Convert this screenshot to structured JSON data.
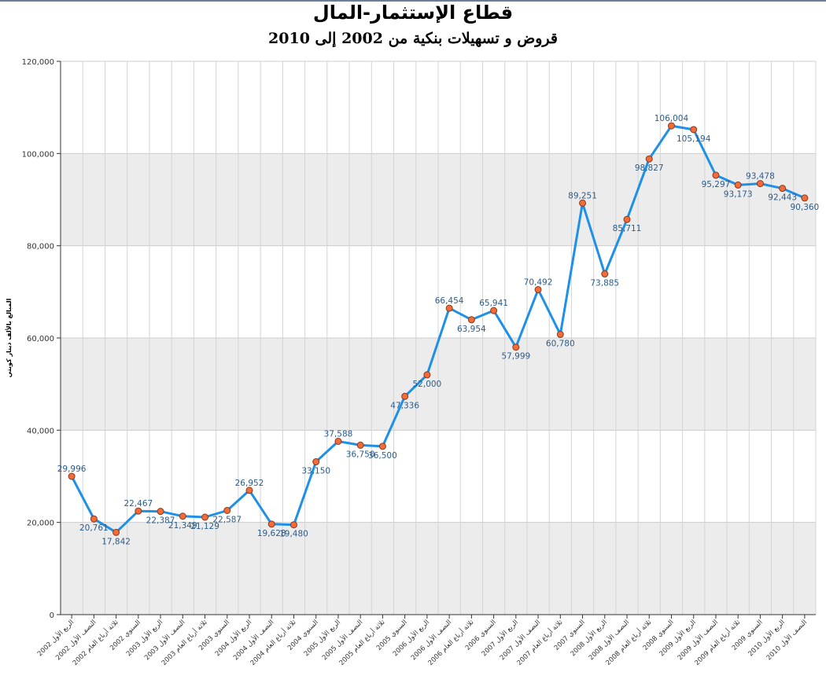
{
  "chart_data": {
    "type": "line",
    "title": "قطاع الإستثمار-المال",
    "subtitle": "قروض و تسهيلات بنكية من 2002 إلى 2010",
    "ylabel": "المبالغ بالألف دينار كويتي",
    "xlabel": "",
    "ylim": [
      0,
      120000
    ],
    "yticks": [
      0,
      20000,
      40000,
      60000,
      80000,
      100000,
      120000
    ],
    "ytick_labels": [
      "0",
      "20,000",
      "40,000",
      "60,000",
      "80,000",
      "100,000",
      "120,000"
    ],
    "grid": true,
    "line_color": "#1e90e8",
    "marker_color": "#f26b3a",
    "band_color": "#ececec",
    "categories": [
      "الربع الأول 2002",
      "النصف الأول 2002",
      "ثلاثة أرباع العام 2002",
      "السنوي 2002",
      "الربع الأول 2003",
      "النصف الأول 2003",
      "ثلاثة أرباع العام 2003",
      "السنوي 2003",
      "الربع الأول 2004",
      "النصف الأول 2004",
      "ثلاثة أرباع العام 2004",
      "السنوي 2004",
      "الربع الأول 2005",
      "النصف الأول 2005",
      "ثلاثة أرباع العام 2005",
      "السنوي 2005",
      "الربع الأول 2006",
      "النصف الأول 2006",
      "ثلاثة أرباع العام 2006",
      "السنوي 2006",
      "الربع الأول 2007",
      "النصف الأول 2007",
      "ثلاثة أرباع العام 2007",
      "السنوي 2007",
      "الربع الأول 2008",
      "النصف الأول 2008",
      "ثلاثة أرباع العام 2008",
      "السنوي 2008",
      "الربع الأول 2009",
      "النصف الأول 2009",
      "ثلاثة أرباع العام 2009",
      "السنوي 2009",
      "الربع الأول 2010",
      "النصف الأول 2010"
    ],
    "values": [
      29996,
      20761,
      17842,
      22467,
      22387,
      21349,
      21129,
      22587,
      26952,
      19628,
      19480,
      33150,
      37588,
      36750,
      36500,
      47336,
      52000,
      66454,
      63954,
      65941,
      57999,
      70492,
      60780,
      89251,
      73885,
      85711,
      98827,
      106004,
      105194,
      95297,
      93173,
      93478,
      92443,
      90360
    ],
    "value_labels": [
      "29,996",
      "20,761",
      "17,842",
      "22,467",
      "22,387",
      "21,349",
      "21,129",
      "22,587",
      "26,952",
      "19,628",
      "19,480",
      "33,150",
      "37,588",
      "36,750",
      "36,500",
      "47,336",
      "52,000",
      "66,454",
      "63,954",
      "65,941",
      "57,999",
      "70,492",
      "60,780",
      "89,251",
      "73,885",
      "85,711",
      "98,827",
      "106,004",
      "105,194",
      "95,297",
      "93,173",
      "93,478",
      "92,443",
      "90,360"
    ]
  }
}
